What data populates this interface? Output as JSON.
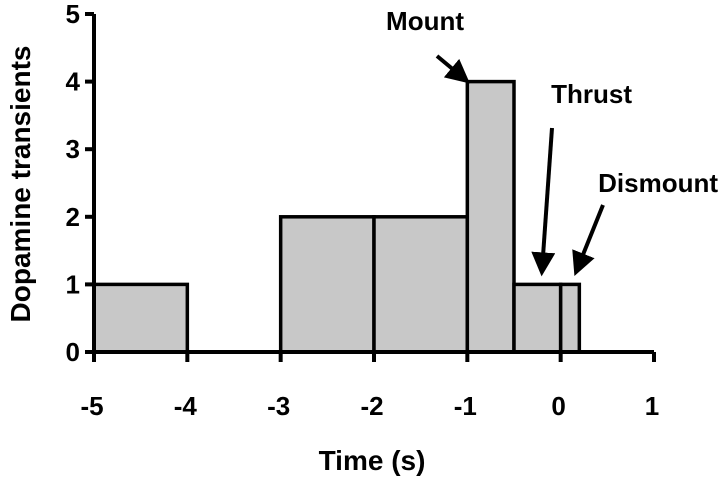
{
  "chart_data": {
    "type": "bar",
    "title": "",
    "xlabel": "Time (s)",
    "ylabel": "Dopamine transients",
    "xlim": [
      -5,
      1
    ],
    "ylim": [
      0,
      5
    ],
    "xticks": [
      -5,
      -4,
      -3,
      -2,
      -1,
      0,
      1
    ],
    "yticks": [
      0,
      1,
      2,
      3,
      4,
      5
    ],
    "xtick_labels": [
      "-5",
      "-4",
      "-3",
      "-2",
      "-1",
      "0",
      "1"
    ],
    "ytick_labels": [
      "0",
      "1",
      "2",
      "3",
      "4",
      "5"
    ],
    "bars": [
      {
        "x0": -5.0,
        "x1": -4.0,
        "value": 1
      },
      {
        "x0": -3.0,
        "x1": -2.0,
        "value": 2
      },
      {
        "x0": -2.0,
        "x1": -1.0,
        "value": 2
      },
      {
        "x0": -1.0,
        "x1": -0.5,
        "value": 4
      },
      {
        "x0": -0.5,
        "x1": 0.0,
        "value": 1
      },
      {
        "x0": 0.0,
        "x1": 0.2,
        "value": 1
      }
    ],
    "annotations": [
      {
        "text": "Mount",
        "points_to": {
          "x": -1.0,
          "y": 4
        }
      },
      {
        "text": "Thrust",
        "points_to": {
          "x": -0.2,
          "y": 1
        }
      },
      {
        "text": "Dismount",
        "points_to": {
          "x": 0.15,
          "y": 1
        }
      }
    ],
    "grid": false,
    "legend": "none",
    "colors": {
      "bar_fill": "#c8c8c8",
      "bar_stroke": "#000000",
      "axis": "#000000"
    }
  }
}
